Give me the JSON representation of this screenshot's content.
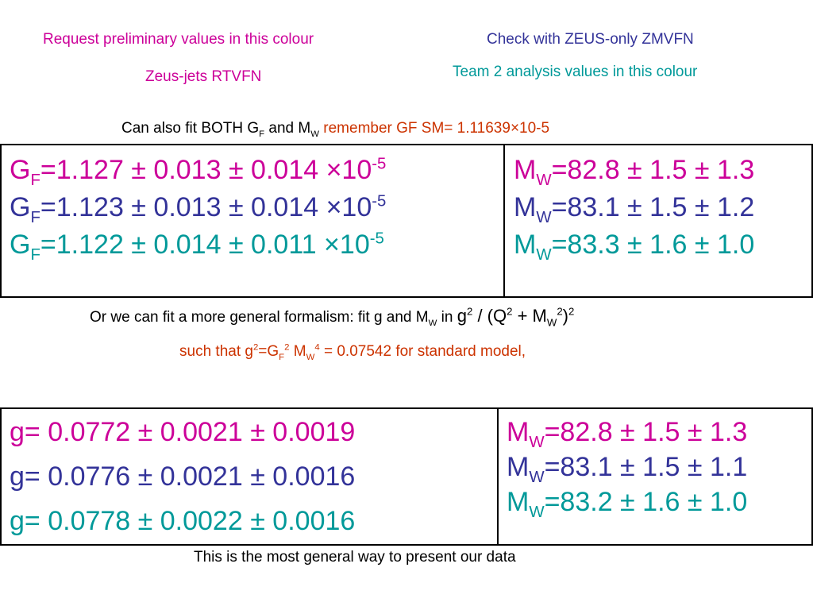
{
  "header": {
    "request_note": "Request preliminary values in this colour",
    "zeus_jets": "Zeus-jets RTVFN",
    "check_zeus": "Check with ZEUS-only ZMVFN",
    "team2_note": "Team 2 analysis values in this colour"
  },
  "fit_both": {
    "prefix": "Can also fit  BOTH G",
    "sub_f": "F",
    "and_m": " and M",
    "sub_w": "W",
    "remember": "remember GF SM= 1.11639×10-5"
  },
  "table1": {
    "left": [
      {
        "sym": "G",
        "sub": "F",
        "value": "=1.127 ± 0.013 ± 0.014 ×10",
        "exp": "-5",
        "color": "#cc0099"
      },
      {
        "sym": "G",
        "sub": "F",
        "value": "=1.123 ± 0.013 ± 0.014 ×10",
        "exp": "-5",
        "color": "#333399"
      },
      {
        "sym": "G",
        "sub": "F",
        "value": "=1.122 ± 0.014 ± 0.011 ×10",
        "exp": "-5",
        "color": "#009999"
      }
    ],
    "right": [
      {
        "sym": "M",
        "sub": "W",
        "value": "=82.8 ± 1.5 ± 1.3",
        "color": "#cc0099"
      },
      {
        "sym": "M",
        "sub": "W",
        "value": "=83.1 ± 1.5 ± 1.2",
        "color": "#333399"
      },
      {
        "sym": "M",
        "sub": "W",
        "value": "=83.3 ± 1.6 ± 1.0",
        "color": "#009999"
      }
    ]
  },
  "general": {
    "line1_text": "Or we can fit a more general formalism: fit g and M",
    "line1_sub": "W",
    "line1_in": " in ",
    "formula_g": "g",
    "formula_sup2": "2",
    "formula_mid": " / (Q",
    "formula_sup2b": "2",
    "formula_plus": " + M",
    "formula_subw": "W",
    "formula_sup2c": "2",
    "formula_close": ")",
    "formula_sup2d": "2",
    "line2_a": "such that g",
    "line2_sup2": "2",
    "line2_b": "=G",
    "line2_subf": "F",
    "line2_sup2b": "2",
    "line2_c": " M",
    "line2_subw": "W",
    "line2_sup4": "4",
    "line2_d": " = 0.07542 for standard model,"
  },
  "table2": {
    "left": [
      {
        "value": "g= 0.0772 ± 0.0021 ± 0.0019",
        "color": "#cc0099"
      },
      {
        "value": "g= 0.0776 ± 0.0021 ± 0.0016",
        "color": "#333399"
      },
      {
        "value": " g= 0.0778 ± 0.0022 ± 0.0016",
        "color": "#009999"
      }
    ],
    "right": [
      {
        "sym": "M",
        "sub": "W",
        "value": "=82.8 ± 1.5 ± 1.3",
        "color": "#cc0099"
      },
      {
        "sym": "M",
        "sub": "W",
        "value": "=83.1 ± 1.5 ± 1.1",
        "color": "#333399"
      },
      {
        "sym": "M",
        "sub": "W",
        "value": "=83.2 ± 1.6 ± 1.0",
        "color": "#009999"
      }
    ]
  },
  "footer": "This is the most general way to present our data"
}
